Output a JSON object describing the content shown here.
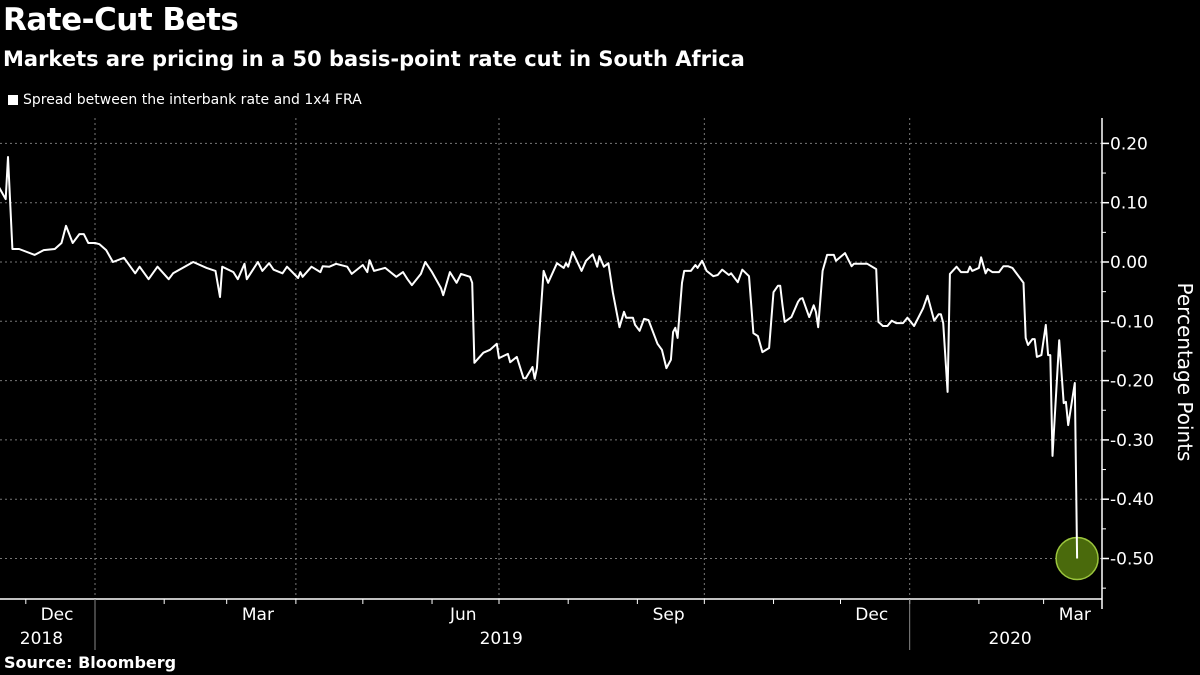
{
  "title": "Rate-Cut Bets",
  "subtitle": "Markets are pricing in a 50 basis-point rate cut in South Africa",
  "source": "Source: Bloomberg",
  "chart_data": {
    "type": "line",
    "title": "Rate-Cut Bets",
    "subtitle": "Markets are pricing in a 50 basis-point rate cut in South Africa",
    "ylabel": "Percentage Points",
    "xlabel": "",
    "ylim": [
      -0.57,
      0.25
    ],
    "yticks": [
      0.2,
      0.1,
      0.0,
      -0.1,
      -0.2,
      -0.3,
      -0.4,
      -0.5
    ],
    "ytick_labels": [
      "0.20",
      "0.10",
      "0.00",
      "-0.10",
      "-0.20",
      "-0.30",
      "-0.40",
      "-0.50"
    ],
    "xlim": [
      "2018-11-19",
      "2020-03-22"
    ],
    "x_month_labels": [
      {
        "month": "2018-12",
        "label": "Dec"
      },
      {
        "month": "2019-03",
        "label": "Mar"
      },
      {
        "month": "2019-06",
        "label": "Jun"
      },
      {
        "month": "2019-09",
        "label": "Sep"
      },
      {
        "month": "2019-12",
        "label": "Dec"
      },
      {
        "month": "2020-03",
        "label": "Mar"
      }
    ],
    "x_year_labels": [
      {
        "label": "2018",
        "at": "2018-12-08"
      },
      {
        "label": "2019",
        "at": "2019-07-02"
      },
      {
        "label": "2020",
        "at": "2020-02-15"
      }
    ],
    "grid": true,
    "legend": "top-left",
    "line_color": "#ffffff",
    "highlight_color": "#4a6a0c",
    "highlight_border": "#9bc53d",
    "highlight_point": {
      "date": "2020-03-16",
      "value": -0.5
    },
    "series": [
      {
        "name": "Spread between the interbank rate and 1x4 FRA",
        "points": [
          [
            "2018-11-19",
            0.126
          ],
          [
            "2018-11-22",
            0.106
          ],
          [
            "2018-11-23",
            0.177
          ],
          [
            "2018-11-25",
            0.022
          ],
          [
            "2018-11-28",
            0.022
          ],
          [
            "2018-12-05",
            0.012
          ],
          [
            "2018-12-09",
            0.02
          ],
          [
            "2018-12-14",
            0.022
          ],
          [
            "2018-12-17",
            0.032
          ],
          [
            "2018-12-19",
            0.061
          ],
          [
            "2018-12-22",
            0.032
          ],
          [
            "2018-12-25",
            0.047
          ],
          [
            "2018-12-27",
            0.047
          ],
          [
            "2018-12-29",
            0.032
          ],
          [
            "2019-01-01",
            0.032
          ],
          [
            "2019-01-03",
            0.03
          ],
          [
            "2019-01-06",
            0.02
          ],
          [
            "2019-01-09",
            0.0
          ],
          [
            "2019-01-14",
            0.007
          ],
          [
            "2019-01-19",
            -0.019
          ],
          [
            "2019-01-21",
            -0.008
          ],
          [
            "2019-01-25",
            -0.029
          ],
          [
            "2019-01-29",
            -0.008
          ],
          [
            "2019-02-03",
            -0.029
          ],
          [
            "2019-02-05",
            -0.019
          ],
          [
            "2019-02-14",
            0.0
          ],
          [
            "2019-02-20",
            -0.01
          ],
          [
            "2019-02-24",
            -0.015
          ],
          [
            "2019-02-26",
            -0.059
          ],
          [
            "2019-02-27",
            -0.008
          ],
          [
            "2019-03-04",
            -0.017
          ],
          [
            "2019-03-06",
            -0.029
          ],
          [
            "2019-03-09",
            -0.003
          ],
          [
            "2019-03-10",
            -0.029
          ],
          [
            "2019-03-15",
            0.0
          ],
          [
            "2019-03-17",
            -0.015
          ],
          [
            "2019-03-20",
            -0.002
          ],
          [
            "2019-03-22",
            -0.013
          ],
          [
            "2019-03-26",
            -0.019
          ],
          [
            "2019-03-28",
            -0.008
          ],
          [
            "2019-04-02",
            -0.027
          ],
          [
            "2019-04-03",
            -0.017
          ],
          [
            "2019-04-04",
            -0.025
          ],
          [
            "2019-04-08",
            -0.008
          ],
          [
            "2019-04-12",
            -0.017
          ],
          [
            "2019-04-13",
            -0.007
          ],
          [
            "2019-04-16",
            -0.008
          ],
          [
            "2019-04-19",
            -0.003
          ],
          [
            "2019-04-24",
            -0.008
          ],
          [
            "2019-04-26",
            -0.02
          ],
          [
            "2019-05-01",
            -0.005
          ],
          [
            "2019-05-03",
            -0.017
          ],
          [
            "2019-05-04",
            0.003
          ],
          [
            "2019-05-06",
            -0.015
          ],
          [
            "2019-05-11",
            -0.01
          ],
          [
            "2019-05-16",
            -0.025
          ],
          [
            "2019-05-19",
            -0.017
          ],
          [
            "2019-05-21",
            -0.029
          ],
          [
            "2019-05-23",
            -0.039
          ],
          [
            "2019-05-27",
            -0.02
          ],
          [
            "2019-05-29",
            0.0
          ],
          [
            "2019-06-01",
            -0.017
          ],
          [
            "2019-06-05",
            -0.044
          ],
          [
            "2019-06-06",
            -0.056
          ],
          [
            "2019-06-09",
            -0.017
          ],
          [
            "2019-06-12",
            -0.035
          ],
          [
            "2019-06-14",
            -0.02
          ],
          [
            "2019-06-18",
            -0.025
          ],
          [
            "2019-06-19",
            -0.035
          ],
          [
            "2019-06-20",
            -0.17
          ],
          [
            "2019-06-24",
            -0.153
          ],
          [
            "2019-06-27",
            -0.148
          ],
          [
            "2019-06-30",
            -0.138
          ],
          [
            "2019-07-01",
            -0.162
          ],
          [
            "2019-07-05",
            -0.155
          ],
          [
            "2019-07-06",
            -0.169
          ],
          [
            "2019-07-09",
            -0.16
          ],
          [
            "2019-07-12",
            -0.196
          ],
          [
            "2019-07-13",
            -0.196
          ],
          [
            "2019-07-16",
            -0.177
          ],
          [
            "2019-07-17",
            -0.197
          ],
          [
            "2019-07-18",
            -0.179
          ],
          [
            "2019-07-21",
            -0.015
          ],
          [
            "2019-07-23",
            -0.035
          ],
          [
            "2019-07-27",
            -0.002
          ],
          [
            "2019-07-30",
            -0.01
          ],
          [
            "2019-07-31",
            -0.002
          ],
          [
            "2019-08-01",
            -0.008
          ],
          [
            "2019-08-03",
            0.017
          ],
          [
            "2019-08-07",
            -0.015
          ],
          [
            "2019-08-09",
            0.002
          ],
          [
            "2019-08-12",
            0.013
          ],
          [
            "2019-08-14",
            -0.008
          ],
          [
            "2019-08-15",
            0.01
          ],
          [
            "2019-08-17",
            -0.008
          ],
          [
            "2019-08-19",
            -0.002
          ],
          [
            "2019-08-21",
            -0.051
          ],
          [
            "2019-08-24",
            -0.11
          ],
          [
            "2019-08-26",
            -0.084
          ],
          [
            "2019-08-27",
            -0.094
          ],
          [
            "2019-08-30",
            -0.094
          ],
          [
            "2019-08-31",
            -0.106
          ],
          [
            "2019-09-02",
            -0.116
          ],
          [
            "2019-09-04",
            -0.096
          ],
          [
            "2019-09-06",
            -0.098
          ],
          [
            "2019-09-10",
            -0.138
          ],
          [
            "2019-09-12",
            -0.148
          ],
          [
            "2019-09-14",
            -0.179
          ],
          [
            "2019-09-16",
            -0.165
          ],
          [
            "2019-09-17",
            -0.118
          ],
          [
            "2019-09-18",
            -0.111
          ],
          [
            "2019-09-19",
            -0.128
          ],
          [
            "2019-09-21",
            -0.035
          ],
          [
            "2019-09-22",
            -0.015
          ],
          [
            "2019-09-25",
            -0.015
          ],
          [
            "2019-09-27",
            -0.005
          ],
          [
            "2019-09-28",
            -0.01
          ],
          [
            "2019-09-30",
            0.002
          ],
          [
            "2019-10-02",
            -0.015
          ],
          [
            "2019-10-05",
            -0.024
          ],
          [
            "2019-10-07",
            -0.022
          ],
          [
            "2019-10-09",
            -0.013
          ],
          [
            "2019-10-12",
            -0.022
          ],
          [
            "2019-10-13",
            -0.019
          ],
          [
            "2019-10-16",
            -0.034
          ],
          [
            "2019-10-18",
            -0.013
          ],
          [
            "2019-10-21",
            -0.024
          ],
          [
            "2019-10-23",
            -0.12
          ],
          [
            "2019-10-25",
            -0.125
          ],
          [
            "2019-10-27",
            -0.152
          ],
          [
            "2019-10-30",
            -0.145
          ],
          [
            "2019-11-01",
            -0.051
          ],
          [
            "2019-11-03",
            -0.04
          ],
          [
            "2019-11-04",
            -0.04
          ],
          [
            "2019-11-05",
            -0.073
          ],
          [
            "2019-11-06",
            -0.101
          ],
          [
            "2019-11-09",
            -0.093
          ],
          [
            "2019-11-12",
            -0.067
          ],
          [
            "2019-11-13",
            -0.062
          ],
          [
            "2019-11-14",
            -0.061
          ],
          [
            "2019-11-17",
            -0.093
          ],
          [
            "2019-11-19",
            -0.073
          ],
          [
            "2019-11-20",
            -0.084
          ],
          [
            "2019-11-21",
            -0.11
          ],
          [
            "2019-11-23",
            -0.015
          ],
          [
            "2019-11-25",
            0.012
          ],
          [
            "2019-11-28",
            0.012
          ],
          [
            "2019-11-29",
            0.002
          ],
          [
            "2019-12-03",
            0.015
          ],
          [
            "2019-12-06",
            -0.007
          ],
          [
            "2019-12-07",
            -0.003
          ],
          [
            "2019-12-13",
            -0.003
          ],
          [
            "2019-12-17",
            -0.012
          ],
          [
            "2019-12-18",
            -0.101
          ],
          [
            "2019-12-20",
            -0.108
          ],
          [
            "2019-12-22",
            -0.108
          ],
          [
            "2019-12-24",
            -0.099
          ],
          [
            "2019-12-26",
            -0.103
          ],
          [
            "2019-12-29",
            -0.103
          ],
          [
            "2019-12-31",
            -0.094
          ],
          [
            "2020-01-03",
            -0.108
          ],
          [
            "2020-01-07",
            -0.078
          ],
          [
            "2020-01-09",
            -0.057
          ],
          [
            "2020-01-12",
            -0.099
          ],
          [
            "2020-01-14",
            -0.088
          ],
          [
            "2020-01-15",
            -0.088
          ],
          [
            "2020-01-16",
            -0.103
          ],
          [
            "2020-01-18",
            -0.219
          ],
          [
            "2020-01-19",
            -0.02
          ],
          [
            "2020-01-22",
            -0.008
          ],
          [
            "2020-01-24",
            -0.017
          ],
          [
            "2020-01-27",
            -0.017
          ],
          [
            "2020-01-28",
            -0.008
          ],
          [
            "2020-01-29",
            -0.015
          ],
          [
            "2020-02-01",
            -0.01
          ],
          [
            "2020-02-02",
            0.008
          ],
          [
            "2020-02-04",
            -0.019
          ],
          [
            "2020-02-05",
            -0.012
          ],
          [
            "2020-02-07",
            -0.017
          ],
          [
            "2020-02-10",
            -0.017
          ],
          [
            "2020-02-12",
            -0.007
          ],
          [
            "2020-02-14",
            -0.007
          ],
          [
            "2020-02-16",
            -0.01
          ],
          [
            "2020-02-21",
            -0.035
          ],
          [
            "2020-02-22",
            -0.128
          ],
          [
            "2020-02-23",
            -0.14
          ],
          [
            "2020-02-25",
            -0.13
          ],
          [
            "2020-02-26",
            -0.13
          ],
          [
            "2020-02-27",
            -0.16
          ],
          [
            "2020-02-29",
            -0.157
          ],
          [
            "2020-03-02",
            -0.106
          ],
          [
            "2020-03-03",
            -0.157
          ],
          [
            "2020-03-04",
            -0.157
          ],
          [
            "2020-03-05",
            -0.327
          ],
          [
            "2020-03-08",
            -0.132
          ],
          [
            "2020-03-10",
            -0.238
          ],
          [
            "2020-03-11",
            -0.236
          ],
          [
            "2020-03-12",
            -0.275
          ],
          [
            "2020-03-15",
            -0.204
          ],
          [
            "2020-03-16",
            -0.5
          ]
        ]
      }
    ]
  }
}
